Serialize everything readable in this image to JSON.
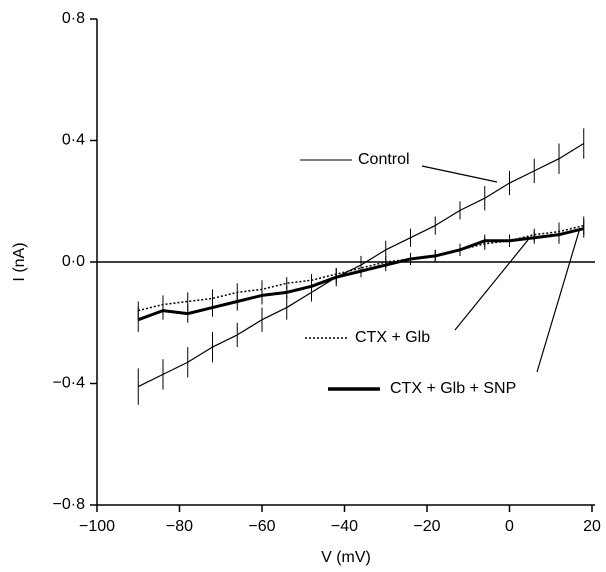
{
  "chart_data": {
    "type": "line",
    "x_label": "V (mV)",
    "y_label": "I (nA)",
    "x": [
      -90,
      -84,
      -78,
      -72,
      -66,
      -60,
      -54,
      -48,
      -42,
      -36,
      -30,
      -24,
      -18,
      -12,
      -6,
      0,
      6,
      12,
      18
    ],
    "series": [
      {
        "name": "Control",
        "color": "#000000",
        "style": "thin",
        "values": [
          -0.41,
          -0.37,
          -0.33,
          -0.28,
          -0.24,
          -0.19,
          -0.15,
          -0.1,
          -0.05,
          -0.01,
          0.04,
          0.08,
          0.12,
          0.17,
          0.21,
          0.26,
          0.3,
          0.34,
          0.39
        ],
        "errors": [
          0.06,
          0.05,
          0.05,
          0.05,
          0.04,
          0.04,
          0.04,
          0.03,
          0.03,
          0.03,
          0.03,
          0.03,
          0.03,
          0.03,
          0.04,
          0.04,
          0.04,
          0.05,
          0.05
        ]
      },
      {
        "name": "CTX + Glb",
        "color": "#000000",
        "style": "dotted",
        "values": [
          -0.16,
          -0.14,
          -0.13,
          -0.12,
          -0.1,
          -0.09,
          -0.07,
          -0.06,
          -0.04,
          -0.02,
          0.0,
          0.01,
          0.02,
          0.04,
          0.06,
          0.07,
          0.09,
          0.1,
          0.12
        ],
        "errors": [
          0.03,
          0.03,
          0.03,
          0.03,
          0.03,
          0.03,
          0.02,
          0.02,
          0.02,
          0.02,
          0.02,
          0.02,
          0.02,
          0.02,
          0.02,
          0.02,
          0.02,
          0.03,
          0.03
        ]
      },
      {
        "name": "CTX + Glb + SNP",
        "color": "#000000",
        "style": "thick",
        "values": [
          -0.19,
          -0.16,
          -0.17,
          -0.15,
          -0.13,
          -0.11,
          -0.1,
          -0.08,
          -0.05,
          -0.03,
          -0.01,
          0.01,
          0.02,
          0.04,
          0.07,
          0.07,
          0.08,
          0.09,
          0.11
        ],
        "errors": [
          0.04,
          0.03,
          0.03,
          0.03,
          0.03,
          0.03,
          0.02,
          0.02,
          0.02,
          0.02,
          0.02,
          0.02,
          0.02,
          0.02,
          0.02,
          0.02,
          0.02,
          0.03,
          0.03
        ]
      }
    ],
    "xlim": [
      -100,
      20
    ],
    "xticks": [
      {
        "value": -100,
        "label": "−100"
      },
      {
        "value": -80,
        "label": "−80"
      },
      {
        "value": -60,
        "label": "−60"
      },
      {
        "value": -40,
        "label": "−40"
      },
      {
        "value": -20,
        "label": "−20"
      },
      0,
      20
    ],
    "ylim": [
      -0.8,
      0.8
    ],
    "yticks": [
      {
        "value": -0.8,
        "label": "−0·8"
      },
      {
        "value": -0.4,
        "label": "−0·4"
      },
      {
        "value": 0,
        "label": "0·0"
      },
      {
        "value": 0.4,
        "label": "0·4"
      },
      {
        "value": 0.8,
        "label": "0·8"
      }
    ],
    "zero_line": true
  }
}
